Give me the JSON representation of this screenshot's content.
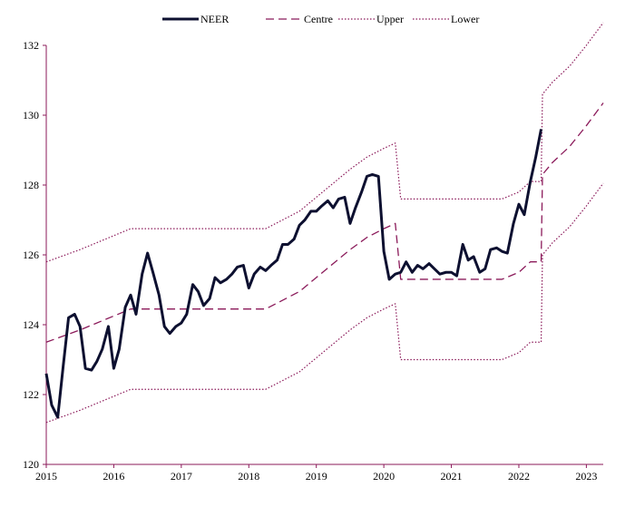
{
  "chart_data": {
    "type": "line",
    "title": "",
    "xlabel": "",
    "ylabel": "",
    "xlim": [
      2015.0,
      2023.25
    ],
    "ylim": [
      120,
      132
    ],
    "x_ticks": [
      2015,
      2016,
      2017,
      2018,
      2019,
      2020,
      2021,
      2022,
      2023
    ],
    "y_ticks": [
      120,
      122,
      124,
      126,
      128,
      130,
      132
    ],
    "grid": false,
    "legend_position": "top",
    "axis_color": "#8b1a5a",
    "series": [
      {
        "name": "NEER",
        "style": "solid-thick",
        "color": "#0d1030",
        "x": [
          2015.0,
          2015.08,
          2015.17,
          2015.25,
          2015.33,
          2015.42,
          2015.5,
          2015.58,
          2015.67,
          2015.75,
          2015.83,
          2015.92,
          2016.0,
          2016.08,
          2016.17,
          2016.25,
          2016.33,
          2016.42,
          2016.5,
          2016.58,
          2016.67,
          2016.75,
          2016.83,
          2016.92,
          2017.0,
          2017.08,
          2017.17,
          2017.25,
          2017.33,
          2017.42,
          2017.5,
          2017.58,
          2017.67,
          2017.75,
          2017.83,
          2017.92,
          2018.0,
          2018.08,
          2018.17,
          2018.25,
          2018.33,
          2018.42,
          2018.5,
          2018.58,
          2018.67,
          2018.75,
          2018.83,
          2018.92,
          2019.0,
          2019.08,
          2019.17,
          2019.25,
          2019.33,
          2019.42,
          2019.5,
          2019.58,
          2019.67,
          2019.75,
          2019.83,
          2019.92,
          2020.0,
          2020.08,
          2020.17,
          2020.25,
          2020.33,
          2020.42,
          2020.5,
          2020.58,
          2020.67,
          2020.75,
          2020.83,
          2020.92,
          2021.0,
          2021.08,
          2021.17,
          2021.25,
          2021.33,
          2021.42,
          2021.5,
          2021.58,
          2021.67,
          2021.75,
          2021.83,
          2021.92,
          2022.0,
          2022.08,
          2022.17,
          2022.25,
          2022.33
        ],
        "values": [
          122.6,
          121.7,
          121.35,
          122.8,
          124.2,
          124.3,
          123.95,
          122.75,
          122.7,
          122.95,
          123.3,
          123.95,
          122.75,
          123.3,
          124.5,
          124.85,
          124.3,
          125.45,
          126.05,
          125.5,
          124.85,
          123.95,
          123.75,
          123.95,
          124.05,
          124.3,
          125.15,
          124.95,
          124.55,
          124.75,
          125.35,
          125.2,
          125.3,
          125.45,
          125.65,
          125.7,
          125.05,
          125.45,
          125.65,
          125.55,
          125.7,
          125.85,
          126.3,
          126.3,
          126.45,
          126.85,
          127.0,
          127.25,
          127.25,
          127.4,
          127.55,
          127.35,
          127.6,
          127.65,
          126.9,
          127.35,
          127.8,
          128.25,
          128.3,
          128.25,
          126.1,
          125.3,
          125.45,
          125.5,
          125.8,
          125.5,
          125.7,
          125.6,
          125.75,
          125.6,
          125.45,
          125.5,
          125.5,
          125.4,
          126.3,
          125.85,
          125.95,
          125.5,
          125.6,
          126.15,
          126.2,
          126.1,
          126.05,
          126.9,
          127.45,
          127.15,
          128.1,
          128.8,
          129.6
        ]
      },
      {
        "name": "Centre",
        "style": "dashed",
        "color": "#8b1a5a",
        "x": [
          2015.0,
          2015.5,
          2016.0,
          2016.25,
          2016.5,
          2017.0,
          2017.5,
          2018.0,
          2018.25,
          2018.5,
          2018.75,
          2019.0,
          2019.25,
          2019.5,
          2019.75,
          2020.0,
          2020.17,
          2020.25,
          2020.5,
          2021.0,
          2021.5,
          2021.75,
          2022.0,
          2022.17,
          2022.33,
          2022.35,
          2022.5,
          2022.75,
          2023.0,
          2023.25
        ],
        "values": [
          123.5,
          123.85,
          124.25,
          124.45,
          124.45,
          124.45,
          124.45,
          124.45,
          124.45,
          124.7,
          124.95,
          125.35,
          125.75,
          126.15,
          126.5,
          126.75,
          126.9,
          125.3,
          125.3,
          125.3,
          125.3,
          125.3,
          125.5,
          125.8,
          125.8,
          128.3,
          128.65,
          129.1,
          129.7,
          130.35
        ]
      },
      {
        "name": "Upper",
        "style": "dotted",
        "color": "#8b1a5a",
        "x": [
          2015.0,
          2015.5,
          2016.0,
          2016.25,
          2016.5,
          2017.0,
          2017.5,
          2018.0,
          2018.25,
          2018.5,
          2018.75,
          2019.0,
          2019.25,
          2019.5,
          2019.75,
          2020.0,
          2020.17,
          2020.25,
          2020.5,
          2021.0,
          2021.5,
          2021.75,
          2022.0,
          2022.17,
          2022.33,
          2022.35,
          2022.5,
          2022.75,
          2023.0,
          2023.25
        ],
        "values": [
          125.8,
          126.15,
          126.55,
          126.75,
          126.75,
          126.75,
          126.75,
          126.75,
          126.75,
          127.0,
          127.25,
          127.65,
          128.05,
          128.45,
          128.8,
          129.05,
          129.2,
          127.6,
          127.6,
          127.6,
          127.6,
          127.6,
          127.8,
          128.1,
          128.1,
          130.6,
          130.95,
          131.4,
          132.0,
          132.65
        ]
      },
      {
        "name": "Lower",
        "style": "dotted",
        "color": "#8b1a5a",
        "x": [
          2015.0,
          2015.5,
          2016.0,
          2016.25,
          2016.5,
          2017.0,
          2017.5,
          2018.0,
          2018.25,
          2018.5,
          2018.75,
          2019.0,
          2019.25,
          2019.5,
          2019.75,
          2020.0,
          2020.17,
          2020.25,
          2020.5,
          2021.0,
          2021.5,
          2021.75,
          2022.0,
          2022.17,
          2022.33,
          2022.35,
          2022.5,
          2022.75,
          2023.0,
          2023.25
        ],
        "values": [
          121.2,
          121.55,
          121.95,
          122.15,
          122.15,
          122.15,
          122.15,
          122.15,
          122.15,
          122.4,
          122.65,
          123.05,
          123.45,
          123.85,
          124.2,
          124.45,
          124.6,
          123.0,
          123.0,
          123.0,
          123.0,
          123.0,
          123.2,
          123.5,
          123.5,
          126.0,
          126.35,
          126.8,
          127.4,
          128.05
        ]
      }
    ]
  }
}
